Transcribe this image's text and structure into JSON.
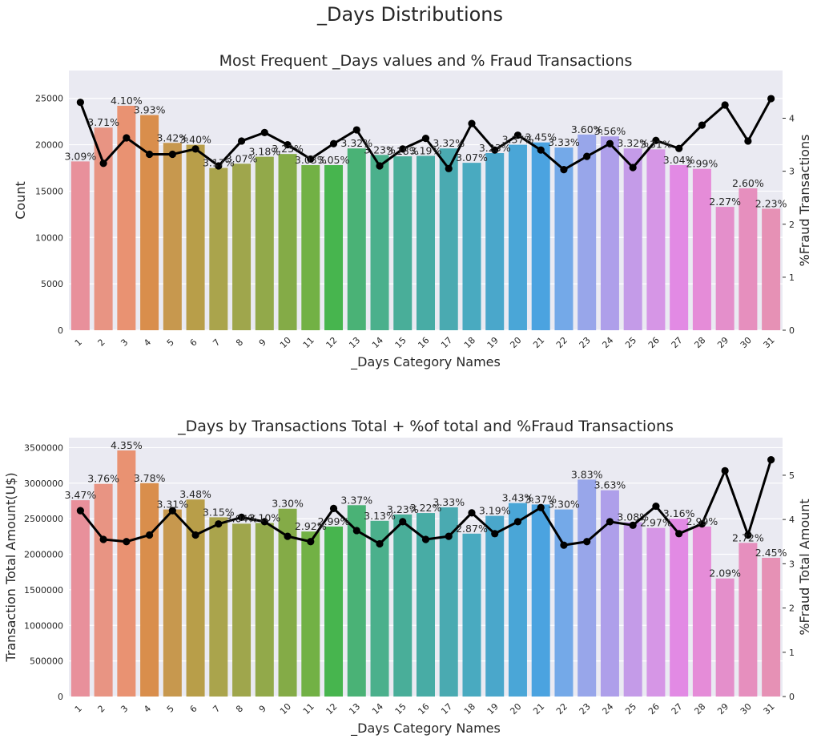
{
  "figure": {
    "suptitle": "_Days Distributions"
  },
  "chart_data": [
    {
      "type": "bar",
      "title": "Most Frequent _Days values and % Fraud Transactions",
      "xlabel": "_Days Category Names",
      "ylabel": "Count",
      "y2label": "%Fraud Transactions",
      "categories": [
        "1",
        "2",
        "3",
        "4",
        "5",
        "6",
        "7",
        "8",
        "9",
        "10",
        "11",
        "12",
        "13",
        "14",
        "15",
        "16",
        "17",
        "18",
        "19",
        "20",
        "21",
        "22",
        "23",
        "24",
        "25",
        "26",
        "27",
        "28",
        "29",
        "30",
        "31"
      ],
      "ylim": [
        0,
        28000
      ],
      "yticks": [
        0,
        5000,
        10000,
        15000,
        20000,
        25000
      ],
      "y2lim": [
        0,
        4.9
      ],
      "y2ticks": [
        0,
        1,
        2,
        3,
        4
      ],
      "grid": true,
      "series": [
        {
          "kind": "bar",
          "values": [
            18200,
            21850,
            24200,
            23200,
            20200,
            20000,
            17500,
            17950,
            18700,
            19000,
            17800,
            17800,
            19600,
            18900,
            18750,
            18800,
            19600,
            18050,
            19100,
            20000,
            20250,
            19700,
            21100,
            20900,
            19600,
            19500,
            17800,
            17400,
            13300,
            15300,
            13100
          ],
          "labels": [
            "3.09%",
            "3.71%",
            "4.10%",
            "3.93%",
            "3.42%",
            "3.40%",
            "3.17%",
            "3.07%",
            "3.18%",
            "3.23%",
            "3.03%",
            "3.05%",
            "3.32%",
            "3.23%",
            "3.18%",
            "3.19%",
            "3.32%",
            "3.07%",
            "3.23%",
            "3.37%",
            "3.45%",
            "3.33%",
            "3.60%",
            "3.56%",
            "3.32%",
            "3.31%",
            "3.04%",
            "2.99%",
            "2.27%",
            "2.60%",
            "2.23%"
          ]
        },
        {
          "kind": "line",
          "axis": "right",
          "values": [
            4.3,
            3.15,
            3.63,
            3.32,
            3.32,
            3.42,
            3.1,
            3.57,
            3.73,
            3.5,
            3.23,
            3.52,
            3.78,
            3.1,
            3.42,
            3.62,
            3.05,
            3.9,
            3.4,
            3.68,
            3.4,
            3.03,
            3.28,
            3.52,
            3.07,
            3.58,
            3.43,
            3.87,
            4.25,
            3.57,
            4.37
          ]
        }
      ]
    },
    {
      "type": "bar",
      "title": "_Days by Transactions Total + %of total and %Fraud Transactions",
      "xlabel": "_Days Category Names",
      "ylabel": "Transaction Total Amount(U$)",
      "y2label": "%Fraud Total Amount",
      "categories": [
        "1",
        "2",
        "3",
        "4",
        "5",
        "6",
        "7",
        "8",
        "9",
        "10",
        "11",
        "12",
        "13",
        "14",
        "15",
        "16",
        "17",
        "18",
        "19",
        "20",
        "21",
        "22",
        "23",
        "24",
        "25",
        "26",
        "27",
        "28",
        "29",
        "30",
        "31"
      ],
      "ylim": [
        0,
        3640000
      ],
      "yticks": [
        0,
        500000,
        1000000,
        1500000,
        2000000,
        2500000,
        3000000,
        3500000
      ],
      "y2lim": [
        0,
        5.85
      ],
      "y2ticks": [
        0,
        1,
        2,
        3,
        4,
        5
      ],
      "grid": true,
      "series": [
        {
          "kind": "bar",
          "values": [
            2760000,
            2990000,
            3460000,
            3000000,
            2630000,
            2770000,
            2520000,
            2430000,
            2440000,
            2640000,
            2320000,
            2390000,
            2690000,
            2470000,
            2560000,
            2580000,
            2660000,
            2290000,
            2540000,
            2720000,
            2700000,
            2630000,
            3050000,
            2900000,
            2450000,
            2370000,
            2500000,
            2390000,
            1660000,
            2160000,
            1950000
          ],
          "labels": [
            "3.47%",
            "3.76%",
            "4.35%",
            "3.78%",
            "3.31%",
            "3.48%",
            "3.15%",
            "3.04%",
            "3.10%",
            "3.30%",
            "2.92%",
            "2.99%",
            "3.37%",
            "3.13%",
            "3.23%",
            "3.22%",
            "3.33%",
            "2.87%",
            "3.19%",
            "3.43%",
            "3.37%",
            "3.30%",
            "3.83%",
            "3.63%",
            "3.08%",
            "2.97%",
            "3.16%",
            "2.99%",
            "2.09%",
            "2.72%",
            "2.45%"
          ]
        },
        {
          "kind": "line",
          "axis": "right",
          "values": [
            4.2,
            3.55,
            3.5,
            3.65,
            4.2,
            3.65,
            3.9,
            4.05,
            3.95,
            3.62,
            3.5,
            4.25,
            3.75,
            3.45,
            3.95,
            3.55,
            3.62,
            4.15,
            3.68,
            3.95,
            4.27,
            3.42,
            3.5,
            3.95,
            3.87,
            4.3,
            3.68,
            3.9,
            5.1,
            3.65,
            5.35
          ]
        }
      ]
    }
  ],
  "palette": [
    "#e8909b",
    "#e89483",
    "#e99272",
    "#d98e4c",
    "#c7984e",
    "#b89e49",
    "#aaa44c",
    "#9fa64c",
    "#92a94a",
    "#84ab47",
    "#72b145",
    "#47b54e",
    "#4ab276",
    "#4bb08c",
    "#49ae99",
    "#48aca5",
    "#4aaab1",
    "#49aac0",
    "#4aa7cb",
    "#4aa6d7",
    "#4ba3e0",
    "#74a9e8",
    "#98a6ea",
    "#ae9fea",
    "#c49be8",
    "#d696e6",
    "#e28ae4",
    "#e58cd8",
    "#e48fcb",
    "#e68fbe",
    "#e691b5"
  ],
  "style": {
    "plot_bg": "#eaeaf2",
    "grid_color": "#ffffff",
    "line_color": "#000000"
  }
}
